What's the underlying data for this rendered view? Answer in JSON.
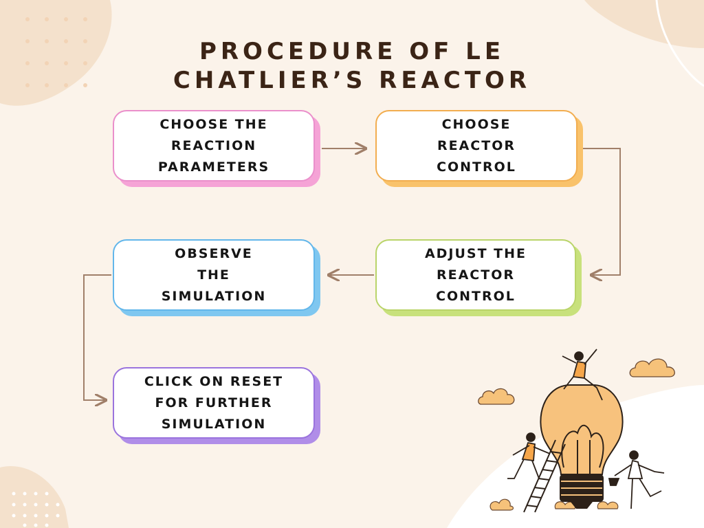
{
  "title": {
    "line1": "PROCEDURE OF LE",
    "line2": "CHATLIER’S REACTOR"
  },
  "steps": [
    {
      "label": "CHOOSE THE\nREACTION\nPARAMETERS",
      "color": "#f5a3d6",
      "border": "#ea8fcb"
    },
    {
      "label": "CHOOSE\nREACTOR\nCONTROL",
      "color": "#f9c26b",
      "border": "#f2ad4f"
    },
    {
      "label": "ADJUST THE\nREACTOR\nCONTROL",
      "color": "#c8e17c",
      "border": "#b9d469"
    },
    {
      "label": "OBSERVE\nTHE\nSIMULATION",
      "color": "#7fc7f0",
      "border": "#62b6ea"
    },
    {
      "label": "CLICK ON RESET\nFOR FURTHER\nSIMULATION",
      "color": "#b08de8",
      "border": "#9a73dd"
    }
  ],
  "colors": {
    "background": "#fbf3ea",
    "title": "#3b2416",
    "connector": "#a07f69",
    "blob": "#f4e1cc"
  },
  "illustration": {
    "icon": "lightbulb-with-people-icon"
  }
}
